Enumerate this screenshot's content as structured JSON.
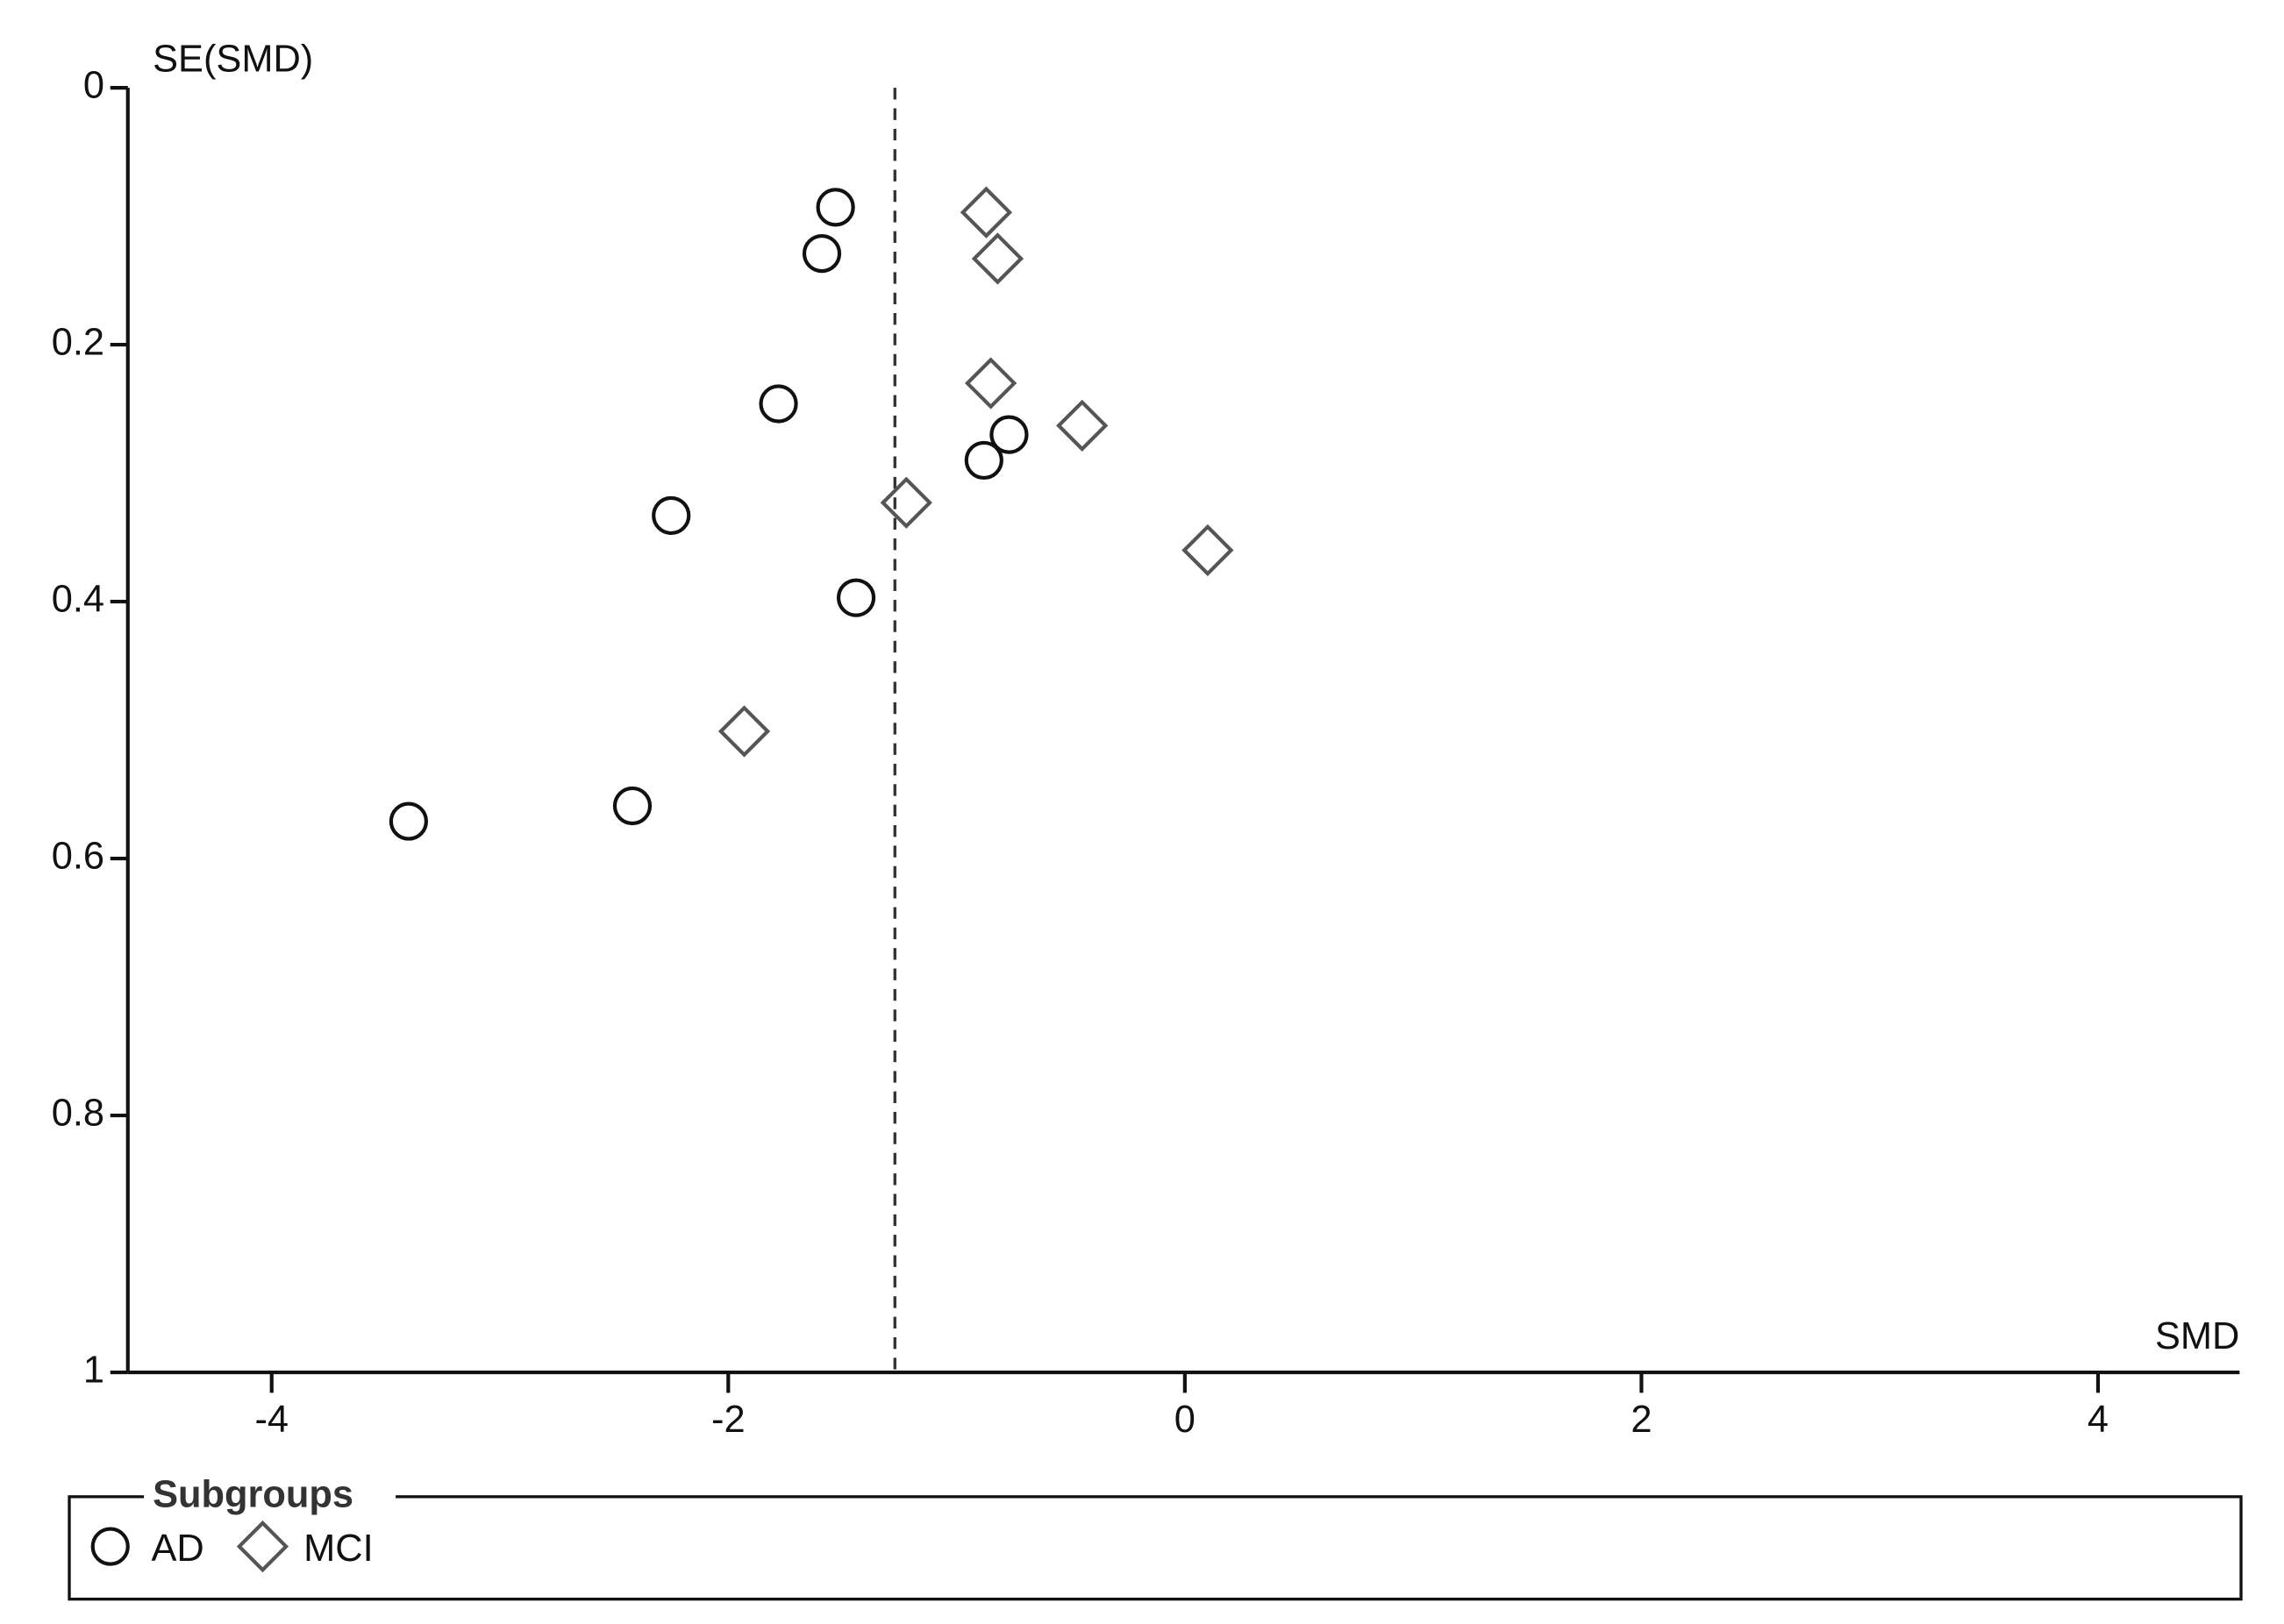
{
  "chart_data": {
    "type": "scatter",
    "x_label": "SMD",
    "y_label": "SE(SMD)",
    "xlim": [
      -4.63,
      4.62
    ],
    "ylim": [
      0,
      1
    ],
    "y_inverted": true,
    "xticks": [
      -4,
      -2,
      0,
      2,
      4
    ],
    "yticks": [
      0,
      0.2,
      0.4,
      0.6,
      0.8,
      1
    ],
    "reference_line": -1.27,
    "legend_title": "Subgroups",
    "legend_position": "bottom",
    "series": [
      {
        "name": "AD",
        "color": "#111111",
        "marker": "circle",
        "x": [
          -1.53,
          -1.59,
          -1.78,
          -2.25,
          -1.44,
          -0.77,
          -0.88,
          -2.42,
          -3.4
        ],
        "values": [
          0.093,
          0.129,
          0.246,
          0.333,
          0.397,
          0.27,
          0.29,
          0.559,
          0.571
        ]
      },
      {
        "name": "MCI",
        "color": "#555555",
        "marker": "diamond",
        "x": [
          -0.87,
          -0.82,
          -0.85,
          -0.45,
          -1.22,
          0.1,
          -1.93
        ],
        "values": [
          0.097,
          0.133,
          0.23,
          0.263,
          0.323,
          0.36,
          0.501
        ]
      }
    ]
  }
}
